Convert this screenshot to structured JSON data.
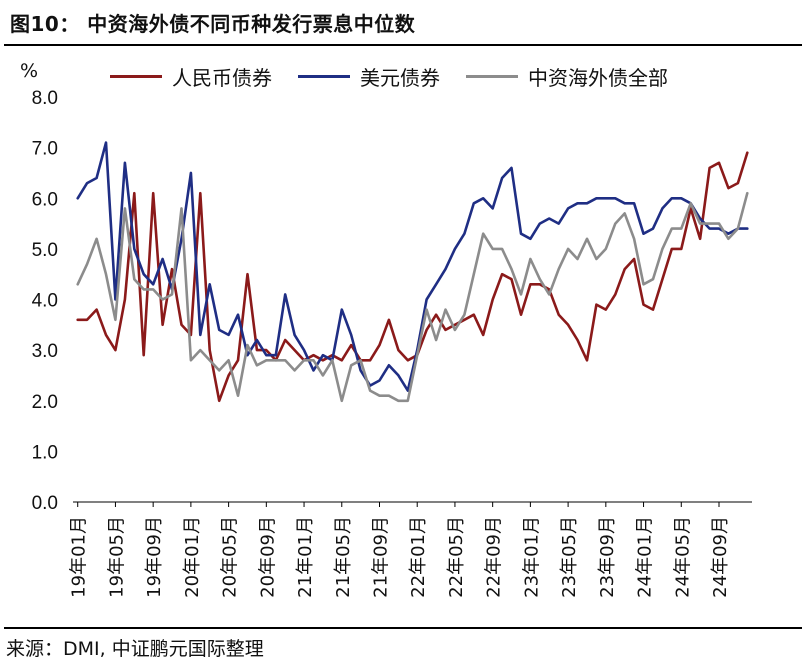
{
  "figure": {
    "title": "图10： 中资海外债不同币种发行票息中位数",
    "source": "来源：DMI, 中证鹏元国际整理"
  },
  "chart_data": {
    "type": "line",
    "ylabel": "%",
    "ylim": [
      0,
      8
    ],
    "yticks": [
      "0.0",
      "1.0",
      "2.0",
      "3.0",
      "4.0",
      "5.0",
      "6.0",
      "7.0",
      "8.0"
    ],
    "x_tick_labels": [
      "19年01月",
      "19年05月",
      "19年09月",
      "20年01月",
      "20年05月",
      "20年09月",
      "21年01月",
      "21年05月",
      "21年09月",
      "22年01月",
      "22年05月",
      "22年09月",
      "23年01月",
      "23年05月",
      "23年09月",
      "24年01月",
      "24年05月",
      "24年09月"
    ],
    "x": [
      "19-01",
      "19-02",
      "19-03",
      "19-04",
      "19-05",
      "19-06",
      "19-07",
      "19-08",
      "19-09",
      "19-10",
      "19-11",
      "19-12",
      "20-01",
      "20-02",
      "20-03",
      "20-04",
      "20-05",
      "20-06",
      "20-07",
      "20-08",
      "20-09",
      "20-10",
      "20-11",
      "20-12",
      "21-01",
      "21-02",
      "21-03",
      "21-04",
      "21-05",
      "21-06",
      "21-07",
      "21-08",
      "21-09",
      "21-10",
      "21-11",
      "21-12",
      "22-01",
      "22-02",
      "22-03",
      "22-04",
      "22-05",
      "22-06",
      "22-07",
      "22-08",
      "22-09",
      "22-10",
      "22-11",
      "22-12",
      "23-01",
      "23-02",
      "23-03",
      "23-04",
      "23-05",
      "23-06",
      "23-07",
      "23-08",
      "23-09",
      "23-10",
      "23-11",
      "23-12",
      "24-01",
      "24-02",
      "24-03",
      "24-04",
      "24-05",
      "24-06",
      "24-07",
      "24-08",
      "24-09",
      "24-10",
      "24-11",
      "24-12"
    ],
    "series": [
      {
        "name": "人民币债券",
        "color": "#8B1A1A",
        "values": [
          3.6,
          3.6,
          3.8,
          3.3,
          3.0,
          4.0,
          6.1,
          2.9,
          6.1,
          3.5,
          4.6,
          3.5,
          3.3,
          6.1,
          3.0,
          2.0,
          2.5,
          2.8,
          4.5,
          3.0,
          3.0,
          2.8,
          3.2,
          3.0,
          2.8,
          2.9,
          2.8,
          2.9,
          2.8,
          3.1,
          2.8,
          2.8,
          3.1,
          3.6,
          3.0,
          2.8,
          2.9,
          3.4,
          3.7,
          3.4,
          3.5,
          3.6,
          3.7,
          3.3,
          4.0,
          4.5,
          4.4,
          3.7,
          4.3,
          4.3,
          4.2,
          3.7,
          3.5,
          3.2,
          2.8,
          3.9,
          3.8,
          4.1,
          4.6,
          4.8,
          3.9,
          3.8,
          4.4,
          5.0,
          5.0,
          5.8,
          5.2,
          6.6,
          6.7,
          6.2,
          6.3,
          6.9
        ]
      },
      {
        "name": "美元债券",
        "color": "#1F2E84",
        "values": [
          6.0,
          6.3,
          6.4,
          7.1,
          4.0,
          6.7,
          5.0,
          4.5,
          4.3,
          4.8,
          4.2,
          5.2,
          6.5,
          3.3,
          4.3,
          3.4,
          3.3,
          3.7,
          2.9,
          3.2,
          2.9,
          2.9,
          4.1,
          3.3,
          3.0,
          2.6,
          2.9,
          2.8,
          3.8,
          3.3,
          2.6,
          2.3,
          2.4,
          2.7,
          2.5,
          2.2,
          3.0,
          4.0,
          4.3,
          4.6,
          5.0,
          5.3,
          5.9,
          6.0,
          5.8,
          6.4,
          6.6,
          5.3,
          5.2,
          5.5,
          5.6,
          5.5,
          5.8,
          5.9,
          5.9,
          6.0,
          6.0,
          6.0,
          5.9,
          5.9,
          5.3,
          5.4,
          5.8,
          6.0,
          6.0,
          5.9,
          5.6,
          5.4,
          5.4,
          5.3,
          5.4,
          5.4
        ]
      },
      {
        "name": "中资海外债全部",
        "color": "#8C8C8C",
        "values": [
          4.3,
          4.7,
          5.2,
          4.5,
          3.6,
          5.8,
          4.4,
          4.2,
          4.2,
          4.0,
          4.1,
          5.8,
          2.8,
          3.0,
          2.8,
          2.6,
          2.8,
          2.1,
          3.1,
          2.7,
          2.8,
          2.8,
          2.8,
          2.6,
          2.8,
          2.8,
          2.5,
          2.8,
          2.0,
          2.7,
          2.8,
          2.2,
          2.1,
          2.1,
          2.0,
          2.0,
          2.9,
          3.8,
          3.2,
          3.8,
          3.4,
          3.7,
          4.5,
          5.3,
          5.0,
          5.0,
          4.6,
          4.1,
          4.8,
          4.4,
          4.1,
          4.6,
          5.0,
          4.8,
          5.2,
          4.8,
          5.0,
          5.5,
          5.7,
          5.2,
          4.3,
          4.4,
          5.0,
          5.4,
          5.4,
          5.9,
          5.5,
          5.5,
          5.5,
          5.2,
          5.4,
          6.1
        ]
      }
    ]
  }
}
